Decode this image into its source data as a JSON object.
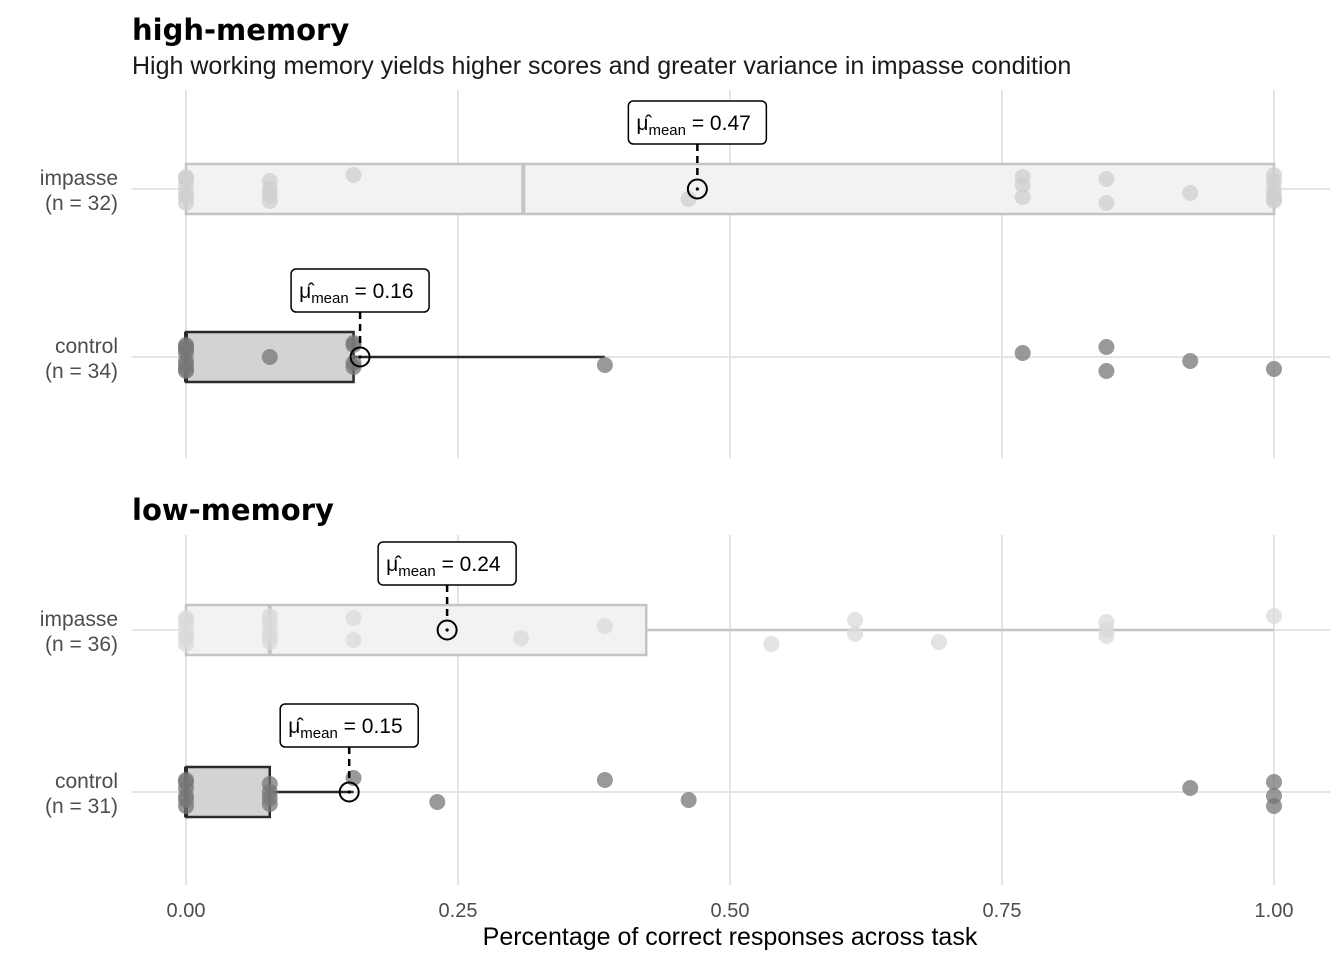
{
  "chart_data": {
    "type": "boxplot",
    "subtitle": "High working memory yields higher scores and greater variance in impasse condition",
    "xlabel": "Percentage of correct responses across task",
    "xlim": [
      0,
      1
    ],
    "xticks": [
      "0.00",
      "0.25",
      "0.50",
      "0.75",
      "1.00"
    ],
    "xtick_values": [
      0,
      0.25,
      0.5,
      0.75,
      1.0
    ],
    "grid": true,
    "annotation_prefix": "μ̂",
    "annotation_subscript": "mean",
    "panels": [
      {
        "title": "high-memory",
        "groups": [
          {
            "name": "impasse",
            "n_label": "(n = 32)",
            "fill": "#f2f2f2",
            "stroke": "#c4c4c4",
            "point_color": "#cfcfcf",
            "q1": 0.0,
            "median": 0.31,
            "q3": 1.0,
            "whisker_low": 0.0,
            "whisker_high": 1.0,
            "mean": 0.47,
            "mean_label": "= 0.47",
            "points": [
              0,
              0,
              0,
              0,
              0,
              0,
              0.077,
              0.077,
              0.077,
              0.077,
              0.154,
              0.462,
              0.769,
              0.769,
              0.769,
              0.846,
              0.846,
              0.923,
              1,
              1,
              1,
              1,
              1,
              1
            ]
          },
          {
            "name": "control",
            "n_label": "(n = 34)",
            "fill": "#d3d3d3",
            "stroke": "#2b2b2b",
            "point_color": "#777777",
            "q1": 0.0,
            "median": 0.0,
            "q3": 0.154,
            "whisker_low": 0.0,
            "whisker_high": 0.385,
            "mean": 0.16,
            "mean_label": "= 0.16",
            "points": [
              0,
              0,
              0,
              0,
              0,
              0,
              0,
              0,
              0.077,
              0.154,
              0.154,
              0.154,
              0.154,
              0.385,
              0.769,
              0.846,
              0.846,
              0.923,
              1
            ]
          }
        ]
      },
      {
        "title": "low-memory",
        "groups": [
          {
            "name": "impasse",
            "n_label": "(n = 36)",
            "fill": "#f2f2f2",
            "stroke": "#c4c4c4",
            "point_color": "#d9d9d9",
            "q1": 0.0,
            "median": 0.077,
            "q3": 0.423,
            "whisker_low": 0.0,
            "whisker_high": 1.0,
            "mean": 0.24,
            "mean_label": "= 0.24",
            "points": [
              0,
              0,
              0,
              0,
              0,
              0,
              0.077,
              0.077,
              0.077,
              0.077,
              0.077,
              0.154,
              0.154,
              0.308,
              0.385,
              0.538,
              0.615,
              0.615,
              0.692,
              0.846,
              0.846,
              0.846,
              1
            ]
          },
          {
            "name": "control",
            "n_label": "(n = 31)",
            "fill": "#d3d3d3",
            "stroke": "#2b2b2b",
            "point_color": "#777777",
            "q1": 0.0,
            "median": 0.0,
            "q3": 0.077,
            "whisker_low": 0.0,
            "whisker_high": 0.154,
            "mean": 0.15,
            "mean_label": "= 0.15",
            "points": [
              0,
              0,
              0,
              0,
              0,
              0,
              0.077,
              0.077,
              0.077,
              0.077,
              0.154,
              0.231,
              0.385,
              0.462,
              0.923,
              1,
              1,
              1
            ]
          }
        ]
      }
    ]
  }
}
